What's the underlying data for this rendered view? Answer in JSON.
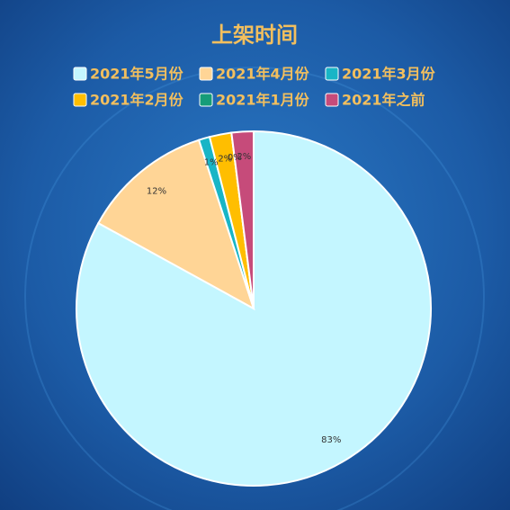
{
  "chart_data": {
    "type": "pie",
    "title": "上架时间",
    "categories": [
      "2021年5月份",
      "2021年4月份",
      "2021年3月份",
      "2021年2月份",
      "2021年1月份",
      "2021年之前"
    ],
    "values": [
      83,
      12,
      1,
      2,
      0,
      2
    ],
    "value_labels": [
      "83%",
      "12%",
      "1%",
      "2%",
      "0%",
      "2%"
    ],
    "colors": [
      "#c4f6ff",
      "#ffd596",
      "#18b5c6",
      "#ffbe00",
      "#169c78",
      "#c64b7a"
    ]
  }
}
